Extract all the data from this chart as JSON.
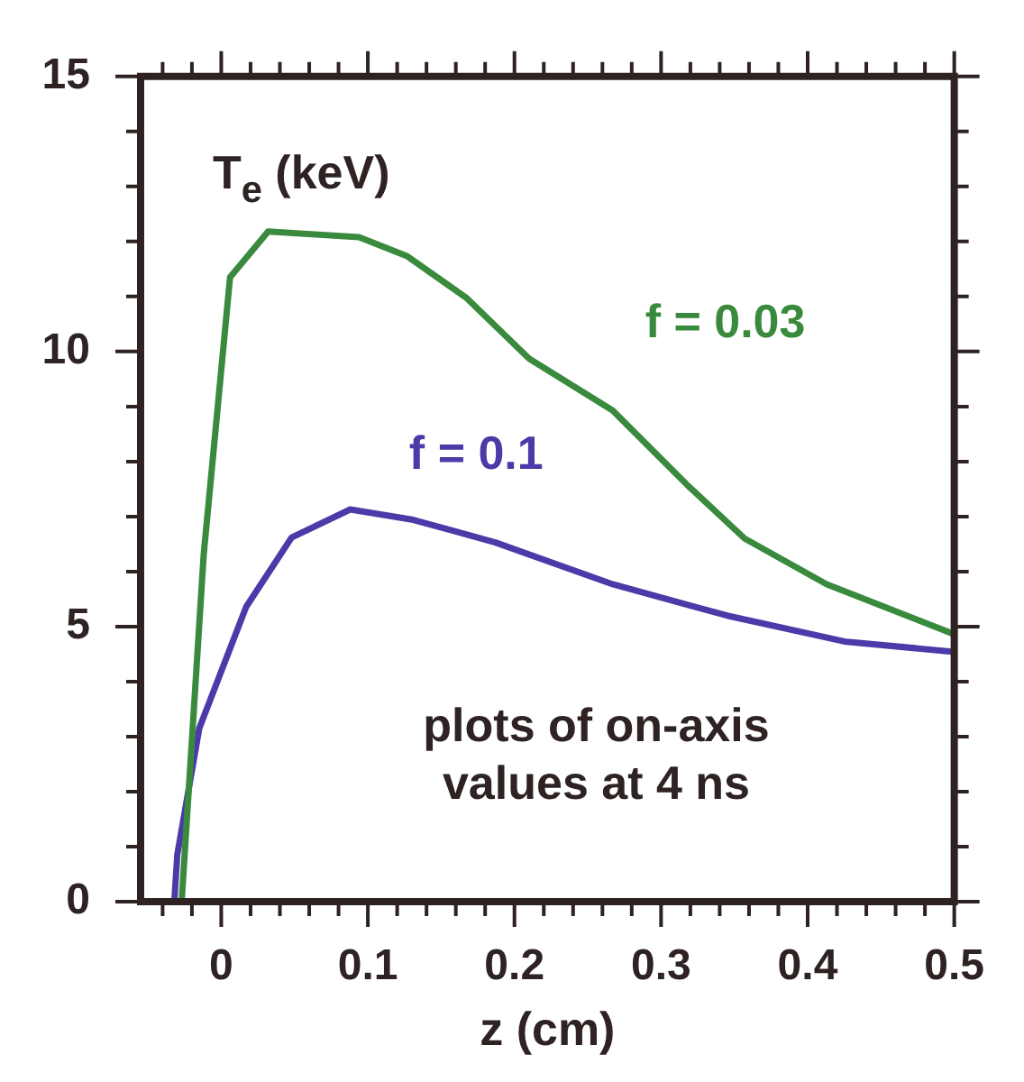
{
  "chart_data": {
    "type": "line",
    "xlabel": "z (cm)",
    "ylabel": "T$_{e}$ (keV)",
    "annotations": [
      "plots of on-axis values at 4 ns"
    ],
    "xlim": [
      -0.055,
      0.5
    ],
    "ylim": [
      0,
      15
    ],
    "xticks": [
      {
        "value": -0.04,
        "label": null
      },
      {
        "value": -0.02,
        "label": null
      },
      0,
      {
        "value": 0.02,
        "label": null
      },
      {
        "value": 0.04,
        "label": null
      },
      {
        "value": 0.06,
        "label": null
      },
      {
        "value": 0.08,
        "label": null
      },
      0.1,
      {
        "value": 0.12,
        "label": null
      },
      {
        "value": 0.14,
        "label": null
      },
      {
        "value": 0.16,
        "label": null
      },
      {
        "value": 0.18,
        "label": null
      },
      0.2,
      {
        "value": 0.22,
        "label": null
      },
      {
        "value": 0.24,
        "label": null
      },
      {
        "value": 0.26,
        "label": null
      },
      {
        "value": 0.28,
        "label": null
      },
      0.3,
      {
        "value": 0.32,
        "label": null
      },
      {
        "value": 0.34,
        "label": null
      },
      {
        "value": 0.36,
        "label": null
      },
      {
        "value": 0.38,
        "label": null
      },
      0.4,
      {
        "value": 0.42,
        "label": null
      },
      {
        "value": 0.44,
        "label": null
      },
      {
        "value": 0.46,
        "label": null
      },
      {
        "value": 0.48,
        "label": null
      },
      0.5
    ],
    "yticks": [
      0,
      {
        "value": 1,
        "label": null
      },
      {
        "value": 2,
        "label": null
      },
      {
        "value": 3,
        "label": null
      },
      {
        "value": 4,
        "label": null
      },
      5,
      {
        "value": 6,
        "label": null
      },
      {
        "value": 7,
        "label": null
      },
      {
        "value": 8,
        "label": null
      },
      {
        "value": 9,
        "label": null
      },
      10,
      {
        "value": 11,
        "label": null
      },
      {
        "value": 12,
        "label": null
      },
      {
        "value": 13,
        "label": null
      },
      {
        "value": 14,
        "label": null
      },
      15
    ],
    "series": [
      {
        "name": "f = 0.03",
        "color": "#3a8a3e",
        "x": [
          -0.027,
          -0.012,
          0.006,
          0.032,
          0.094,
          0.127,
          0.167,
          0.21,
          0.267,
          0.318,
          0.357,
          0.413,
          0.5
        ],
        "values": [
          0,
          6.3,
          11.35,
          12.18,
          12.08,
          11.73,
          10.98,
          9.87,
          8.93,
          7.57,
          6.6,
          5.77,
          4.86
        ]
      },
      {
        "name": "f = 0.1",
        "color": "#4b3aa8",
        "x": [
          -0.032,
          -0.03,
          -0.015,
          0.017,
          0.048,
          0.088,
          0.131,
          0.187,
          0.267,
          0.345,
          0.425,
          0.5
        ],
        "values": [
          0,
          0.85,
          3.15,
          5.36,
          6.62,
          7.13,
          6.94,
          6.53,
          5.77,
          5.2,
          4.73,
          4.54
        ]
      }
    ]
  }
}
